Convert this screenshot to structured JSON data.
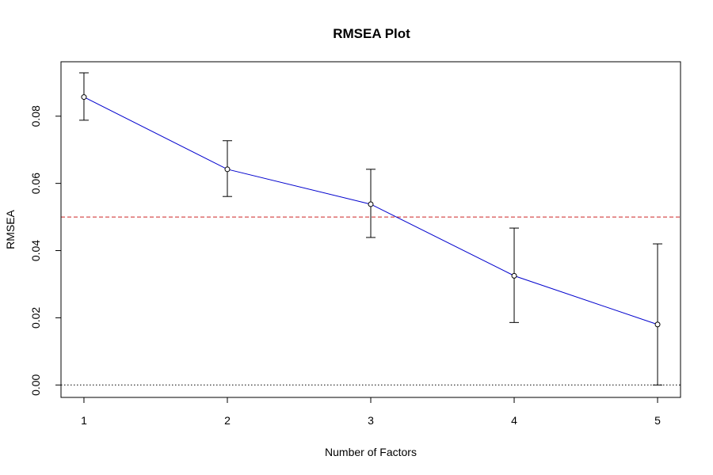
{
  "chart_data": {
    "type": "line",
    "title": "RMSEA Plot",
    "xlabel": "Number of Factors",
    "ylabel": "RMSEA",
    "x": [
      1,
      2,
      3,
      4,
      5
    ],
    "x_ticks": [
      "1",
      "2",
      "3",
      "4",
      "5"
    ],
    "y_ticks": [
      "0.00",
      "0.02",
      "0.04",
      "0.06",
      "0.08"
    ],
    "y_tick_values": [
      0,
      0.02,
      0.04,
      0.06,
      0.08
    ],
    "xlim": [
      0.84,
      5.16
    ],
    "ylim": [
      -0.0037,
      0.0962
    ],
    "series": [
      {
        "values": [
          0.0857,
          0.0642,
          0.0538,
          0.0325,
          0.018
        ],
        "lower": [
          0.0788,
          0.0561,
          0.0439,
          0.0186,
          0.0
        ],
        "upper": [
          0.0929,
          0.0727,
          0.0642,
          0.0467,
          0.042
        ],
        "color": "#0000CD"
      }
    ],
    "reference_lines": [
      {
        "y": 0.05,
        "color": "#CD2626",
        "style": "dashed"
      },
      {
        "y": 0.0,
        "color": "#000000",
        "style": "dotted"
      }
    ],
    "grid": false,
    "legend": "none"
  }
}
